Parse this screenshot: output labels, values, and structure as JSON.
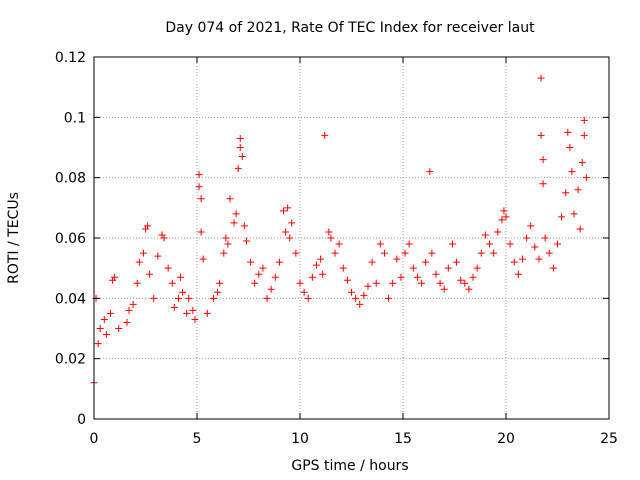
{
  "chart_data": {
    "type": "scatter",
    "title": "Day 074 of 2021, Rate Of TEC Index for receiver laut",
    "xlabel": "GPS time / hours",
    "ylabel": "ROTI / TECUs",
    "xlim": [
      0,
      25
    ],
    "ylim": [
      0,
      0.12
    ],
    "xticks": [
      0,
      5,
      10,
      15,
      20,
      25
    ],
    "xtick_labels": [
      "0",
      "5",
      "10",
      "15",
      "20",
      "25"
    ],
    "yticks": [
      0,
      0.02,
      0.04,
      0.06,
      0.08,
      0.1,
      0.12
    ],
    "ytick_labels": [
      "0",
      "0.02",
      "0.04",
      "0.06",
      "0.08",
      "0.1",
      "0.12"
    ],
    "grid": true,
    "marker": "+",
    "color": "#ff0000",
    "series": [
      {
        "name": "ROTI",
        "points": [
          [
            0.0,
            0.012
          ],
          [
            0.1,
            0.04
          ],
          [
            0.2,
            0.025
          ],
          [
            0.3,
            0.03
          ],
          [
            0.5,
            0.033
          ],
          [
            0.6,
            0.028
          ],
          [
            0.8,
            0.035
          ],
          [
            0.9,
            0.046
          ],
          [
            1.0,
            0.047
          ],
          [
            1.2,
            0.03
          ],
          [
            1.6,
            0.032
          ],
          [
            1.7,
            0.036
          ],
          [
            1.9,
            0.038
          ],
          [
            2.1,
            0.045
          ],
          [
            2.2,
            0.052
          ],
          [
            2.4,
            0.055
          ],
          [
            2.5,
            0.063
          ],
          [
            2.6,
            0.064
          ],
          [
            2.7,
            0.048
          ],
          [
            2.9,
            0.04
          ],
          [
            3.1,
            0.054
          ],
          [
            3.3,
            0.061
          ],
          [
            3.4,
            0.06
          ],
          [
            3.6,
            0.05
          ],
          [
            3.8,
            0.045
          ],
          [
            3.9,
            0.037
          ],
          [
            4.1,
            0.04
          ],
          [
            4.2,
            0.047
          ],
          [
            4.3,
            0.042
          ],
          [
            4.5,
            0.035
          ],
          [
            4.6,
            0.04
          ],
          [
            4.8,
            0.036
          ],
          [
            4.9,
            0.033
          ],
          [
            5.1,
            0.081
          ],
          [
            5.1,
            0.077
          ],
          [
            5.2,
            0.073
          ],
          [
            5.2,
            0.062
          ],
          [
            5.3,
            0.053
          ],
          [
            5.5,
            0.035
          ],
          [
            5.8,
            0.04
          ],
          [
            6.0,
            0.042
          ],
          [
            6.1,
            0.045
          ],
          [
            6.3,
            0.055
          ],
          [
            6.4,
            0.06
          ],
          [
            6.5,
            0.058
          ],
          [
            6.6,
            0.073
          ],
          [
            6.8,
            0.065
          ],
          [
            6.9,
            0.068
          ],
          [
            7.0,
            0.083
          ],
          [
            7.1,
            0.09
          ],
          [
            7.1,
            0.093
          ],
          [
            7.2,
            0.087
          ],
          [
            7.3,
            0.064
          ],
          [
            7.4,
            0.059
          ],
          [
            7.6,
            0.052
          ],
          [
            7.8,
            0.045
          ],
          [
            8.0,
            0.048
          ],
          [
            8.2,
            0.05
          ],
          [
            8.4,
            0.04
          ],
          [
            8.6,
            0.043
          ],
          [
            8.8,
            0.047
          ],
          [
            9.0,
            0.052
          ],
          [
            9.2,
            0.069
          ],
          [
            9.3,
            0.062
          ],
          [
            9.4,
            0.07
          ],
          [
            9.5,
            0.06
          ],
          [
            9.6,
            0.065
          ],
          [
            9.8,
            0.055
          ],
          [
            10.0,
            0.045
          ],
          [
            10.2,
            0.042
          ],
          [
            10.4,
            0.04
          ],
          [
            10.6,
            0.047
          ],
          [
            10.8,
            0.051
          ],
          [
            11.0,
            0.053
          ],
          [
            11.1,
            0.048
          ],
          [
            11.2,
            0.094
          ],
          [
            11.4,
            0.062
          ],
          [
            11.5,
            0.06
          ],
          [
            11.7,
            0.055
          ],
          [
            11.9,
            0.058
          ],
          [
            12.1,
            0.05
          ],
          [
            12.3,
            0.046
          ],
          [
            12.5,
            0.042
          ],
          [
            12.7,
            0.04
          ],
          [
            12.9,
            0.038
          ],
          [
            13.1,
            0.041
          ],
          [
            13.3,
            0.044
          ],
          [
            13.5,
            0.052
          ],
          [
            13.7,
            0.045
          ],
          [
            13.9,
            0.058
          ],
          [
            14.1,
            0.055
          ],
          [
            14.3,
            0.04
          ],
          [
            14.5,
            0.045
          ],
          [
            14.7,
            0.053
          ],
          [
            14.9,
            0.047
          ],
          [
            15.1,
            0.055
          ],
          [
            15.3,
            0.058
          ],
          [
            15.5,
            0.05
          ],
          [
            15.7,
            0.047
          ],
          [
            15.9,
            0.045
          ],
          [
            16.1,
            0.052
          ],
          [
            16.3,
            0.082
          ],
          [
            16.4,
            0.055
          ],
          [
            16.6,
            0.048
          ],
          [
            16.8,
            0.045
          ],
          [
            17.0,
            0.043
          ],
          [
            17.2,
            0.05
          ],
          [
            17.4,
            0.058
          ],
          [
            17.6,
            0.052
          ],
          [
            17.8,
            0.046
          ],
          [
            18.0,
            0.045
          ],
          [
            18.2,
            0.043
          ],
          [
            18.4,
            0.047
          ],
          [
            18.6,
            0.05
          ],
          [
            18.8,
            0.055
          ],
          [
            19.0,
            0.061
          ],
          [
            19.2,
            0.058
          ],
          [
            19.4,
            0.055
          ],
          [
            19.6,
            0.062
          ],
          [
            19.8,
            0.066
          ],
          [
            19.9,
            0.069
          ],
          [
            20.0,
            0.067
          ],
          [
            20.2,
            0.058
          ],
          [
            20.4,
            0.052
          ],
          [
            20.6,
            0.048
          ],
          [
            20.8,
            0.053
          ],
          [
            21.0,
            0.06
          ],
          [
            21.2,
            0.064
          ],
          [
            21.4,
            0.057
          ],
          [
            21.6,
            0.053
          ],
          [
            21.7,
            0.113
          ],
          [
            21.7,
            0.094
          ],
          [
            21.8,
            0.078
          ],
          [
            21.8,
            0.086
          ],
          [
            21.9,
            0.06
          ],
          [
            22.1,
            0.055
          ],
          [
            22.3,
            0.05
          ],
          [
            22.5,
            0.058
          ],
          [
            22.7,
            0.067
          ],
          [
            22.9,
            0.075
          ],
          [
            23.0,
            0.095
          ],
          [
            23.1,
            0.09
          ],
          [
            23.2,
            0.082
          ],
          [
            23.3,
            0.068
          ],
          [
            23.5,
            0.076
          ],
          [
            23.6,
            0.063
          ],
          [
            23.7,
            0.085
          ],
          [
            23.8,
            0.099
          ],
          [
            23.8,
            0.094
          ],
          [
            23.9,
            0.08
          ]
        ]
      }
    ]
  }
}
